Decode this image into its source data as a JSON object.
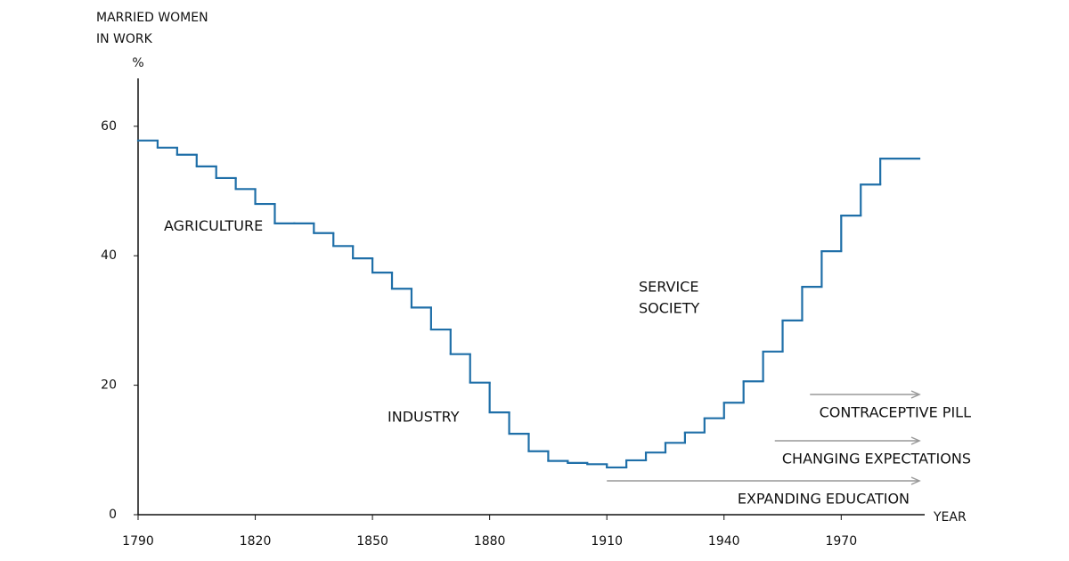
{
  "chart_data": {
    "type": "step",
    "y_title": [
      "MARRIED WOMEN",
      "IN WORK"
    ],
    "y_unit": "%",
    "x_title": "YEAR",
    "x": [
      1790,
      1795,
      1800,
      1805,
      1810,
      1815,
      1820,
      1825,
      1830,
      1835,
      1840,
      1845,
      1850,
      1855,
      1860,
      1865,
      1870,
      1875,
      1880,
      1885,
      1890,
      1895,
      1900,
      1905,
      1910,
      1915,
      1920,
      1925,
      1930,
      1935,
      1940,
      1945,
      1950,
      1955,
      1960,
      1965,
      1970,
      1975,
      1980
    ],
    "values": [
      57.8,
      56.7,
      55.6,
      53.8,
      52.0,
      50.3,
      48.0,
      45.0,
      45.0,
      43.5,
      41.5,
      39.6,
      37.4,
      34.9,
      32.0,
      28.6,
      24.8,
      20.4,
      15.8,
      12.5,
      9.8,
      8.3,
      8.0,
      7.8,
      7.3,
      8.4,
      9.6,
      11.1,
      12.7,
      14.9,
      17.3,
      20.6,
      25.2,
      30.0,
      35.2,
      40.7,
      46.2,
      51.0,
      55.0
    ],
    "color": "#1f6fa8",
    "xlim": [
      1790,
      1990
    ],
    "ylim": [
      0,
      67.4
    ],
    "xticks": [
      1790,
      1820,
      1850,
      1880,
      1910,
      1940,
      1970
    ],
    "yticks": [
      0,
      20,
      40,
      60
    ],
    "era_labels": [
      {
        "text": [
          "AGRICULTURE"
        ],
        "x": 1820,
        "y": 44.5
      },
      {
        "text": [
          "INDUSTRY"
        ],
        "x": 1875,
        "y": 15
      },
      {
        "text": [
          "SERVICE SOCIETY"
        ],
        "x": 1931,
        "y": 33.5
      }
    ],
    "arrows": [
      {
        "text": "CONTRACEPTIVE PILL",
        "start": 1962
      },
      {
        "text": "CHANGING EXPECTATIONS",
        "start": 1953
      },
      {
        "text": "EXPANDING EDUCATION",
        "start": 1910
      }
    ]
  }
}
